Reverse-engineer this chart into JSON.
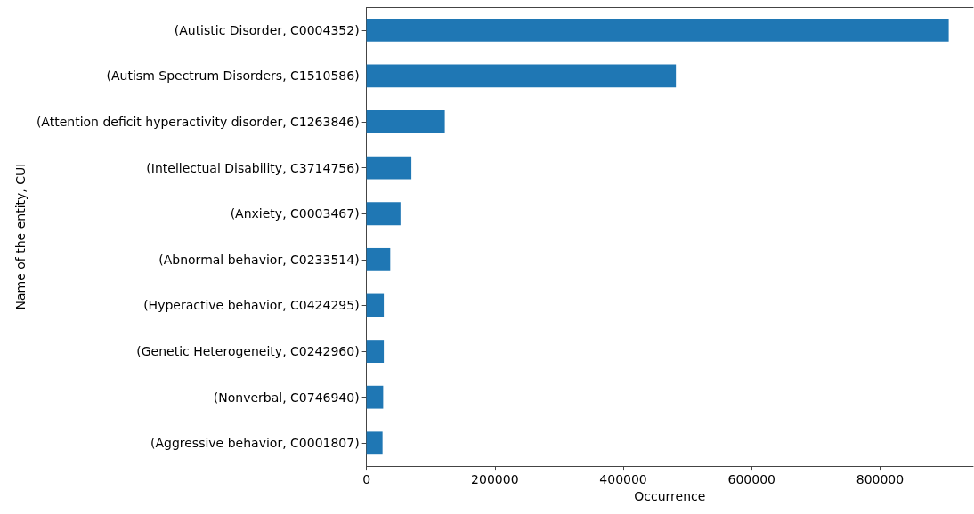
{
  "chart_data": {
    "type": "bar",
    "orientation": "horizontal",
    "xlabel": "Occurrence",
    "ylabel": "Name of the entity, CUI",
    "categories": [
      "(Autistic Disorder, C0004352)",
      "(Autism Spectrum Disorders, C1510586)",
      "(Attention deficit hyperactivity disorder, C1263846)",
      "(Intellectual Disability, C3714756)",
      "(Anxiety, C0003467)",
      "(Abnormal behavior, C0233514)",
      "(Hyperactive behavior, C0424295)",
      "(Genetic Heterogeneity, C0242960)",
      "(Nonverbal, C0746940)",
      "(Aggressive behavior, C0001807)"
    ],
    "values": [
      907000,
      482000,
      122000,
      70000,
      53000,
      37000,
      27000,
      27000,
      26000,
      25000
    ],
    "color": "#1f77b4",
    "xlim": [
      0,
      945000
    ],
    "xticks": [
      0,
      200000,
      400000,
      600000,
      800000
    ],
    "grid": false
  }
}
